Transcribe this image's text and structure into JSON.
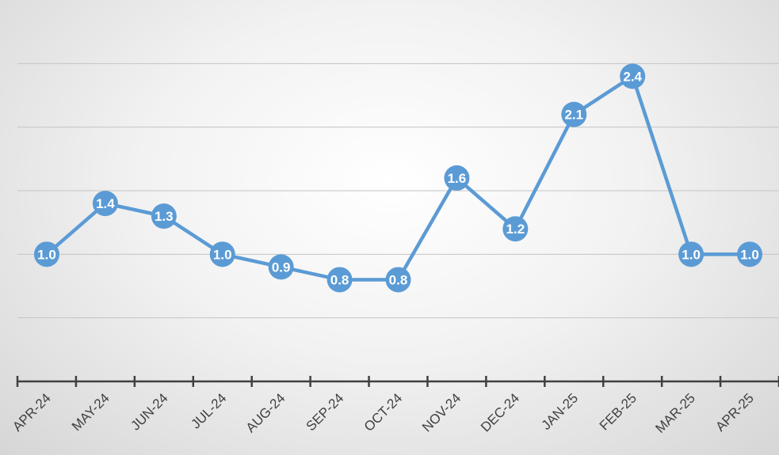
{
  "chart_data": {
    "type": "line",
    "categories": [
      "APR-24",
      "MAY-24",
      "JUN-24",
      "JUL-24",
      "AUG-24",
      "SEP-24",
      "OCT-24",
      "NOV-24",
      "DEC-24",
      "JAN-25",
      "FEB-25",
      "MAR-25",
      "APR-25"
    ],
    "series": [
      {
        "values": [
          1.0,
          1.4,
          1.3,
          1.0,
          0.9,
          0.8,
          0.8,
          1.6,
          1.2,
          2.1,
          2.4,
          1.0,
          1.0
        ]
      }
    ],
    "data_labels": [
      "1.0",
      "1.4",
      "1.3",
      "1.0",
      "0.9",
      "0.8",
      "0.8",
      "1.6",
      "1.2",
      "2.1",
      "2.4",
      "1.0",
      "1.0"
    ],
    "title": "",
    "xlabel": "",
    "ylabel": "",
    "ylim": [
      0,
      3.0
    ],
    "y_gridlines": [
      0.5,
      1.0,
      1.5,
      2.0,
      2.5
    ],
    "grid": true,
    "legend": "none",
    "line_color": "#5b9bd5",
    "label_color": "#ffffff"
  }
}
